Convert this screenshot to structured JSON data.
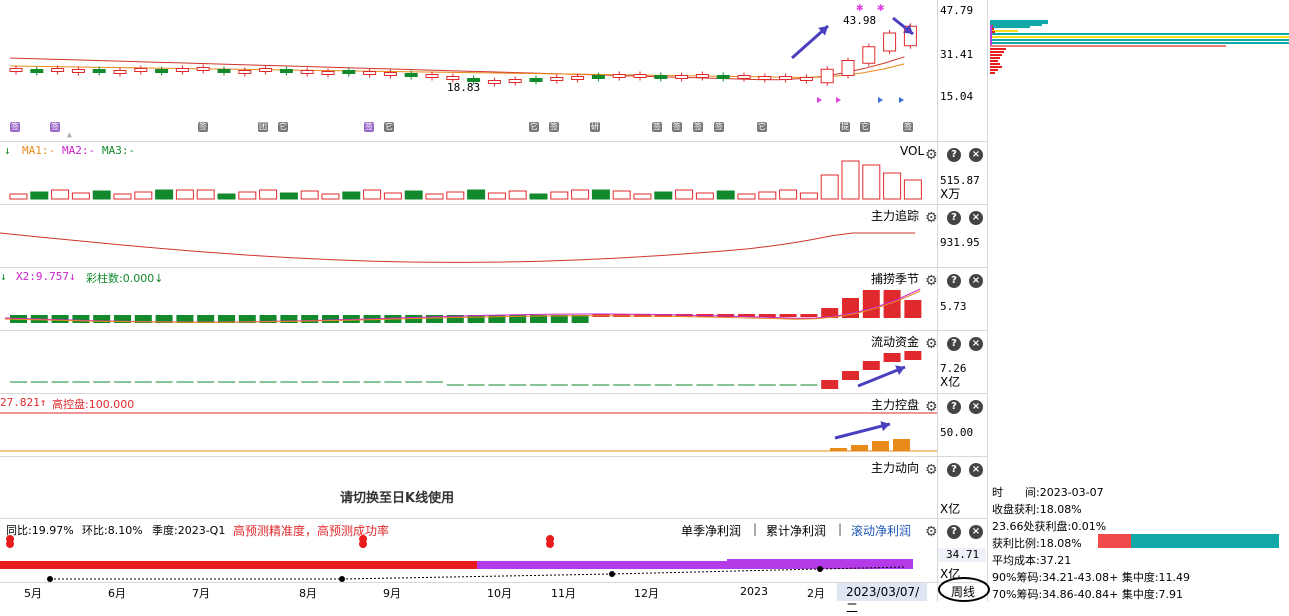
{
  "price_panel": {
    "ticks": [
      "47.79",
      "31.41",
      "15.04"
    ],
    "high_label": "43.98",
    "low_label": "18.83",
    "event_markers": [
      "签",
      "签",
      "签",
      "团",
      "它",
      "签",
      "它",
      "它",
      "签",
      "研",
      "签",
      "签",
      "签",
      "签",
      "它",
      "提",
      "它",
      "签"
    ]
  },
  "volume_panel": {
    "legend": {
      "vol": "↓",
      "ma1": "MA1:-",
      "ma2": "MA2:-",
      "ma3": "MA3:-"
    },
    "title": "VOL",
    "value": "515.87",
    "unit": "X万"
  },
  "tracking_panel": {
    "title": "主力追踪",
    "value": "931.95"
  },
  "season_panel": {
    "legend": {
      "x1": "↓",
      "x2": "X2:9.757↓",
      "bars": "彩柱数:0.000↓"
    },
    "title": "捕捞季节",
    "value": "5.73"
  },
  "flow_panel": {
    "title": "流动资金",
    "value": "7.26",
    "unit": "X亿"
  },
  "control_panel": {
    "legend": {
      "left": "27.821↑",
      "high": "高控盘:100.000"
    },
    "title": "主力控盘",
    "value": "50.00"
  },
  "direction_panel": {
    "title": "主力动向",
    "notice": "请切换至日K线使用",
    "unit": "X亿"
  },
  "profit_panel": {
    "yoy": "同比:19.97%",
    "qoq": "环比:8.10%",
    "quarter": "季度:2023-Q1",
    "accuracy": "高预测精准度，高预测成功率",
    "tabs": [
      "单季净利润",
      "累计净利润",
      "滚动净利润"
    ],
    "value": "34.71",
    "unit": "X亿"
  },
  "x_axis": {
    "months": [
      "5月",
      "6月",
      "7月",
      "8月",
      "9月",
      "10月",
      "11月",
      "12月",
      "2023",
      "2月"
    ],
    "date": "2023/03/07/二",
    "period": "周线"
  },
  "chip_info": {
    "time_label": "时　　间:2023-03-07",
    "close_profit": "收盘获利:18.08%",
    "profit_at": "23.66处获利盘:0.01%",
    "profit_ratio": "获利比例:18.08%",
    "avg_cost": "平均成本:37.21",
    "chips90": "90%筹码:34.21-43.08+ 集中度:11.49",
    "chips70": "70%筹码:34.86-40.84+ 集中度:7.91",
    "profit_fraction": 0.1808
  },
  "colors": {
    "up": "#e0292d",
    "down": "#128a2c",
    "ma_orange": "#e88a1a",
    "ma_red": "#d0352b",
    "magenta": "#cc22cc",
    "arrow": "#4a3fbf",
    "teal": "#12a8a8",
    "orange_bar": "#e88a1a"
  }
}
